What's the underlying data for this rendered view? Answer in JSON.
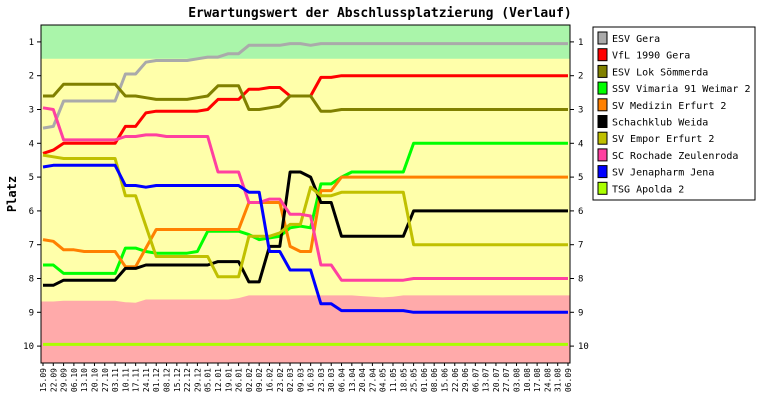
{
  "chart_data": {
    "type": "line",
    "title": "Erwartungswert der Abschlussplatzierung (Verlauf)",
    "ylabel": "Platz",
    "xlabel": "",
    "ylim": [
      0.5,
      10.5
    ],
    "y_inverted": true,
    "y_ticks": [
      "1",
      "2",
      "3",
      "4",
      "5",
      "6",
      "7",
      "8",
      "9",
      "10"
    ],
    "grid": false,
    "legend_position": "right",
    "x": [
      "15.09",
      "22.09",
      "29.09",
      "06.10",
      "13.10",
      "20.10",
      "27.10",
      "03.11",
      "10.11",
      "17.11",
      "24.11",
      "01.12",
      "08.12",
      "15.12",
      "22.12",
      "29.12",
      "05.01",
      "12.01",
      "19.01",
      "26.01",
      "02.02",
      "09.02",
      "16.02",
      "23.02",
      "02.03",
      "09.03",
      "16.03",
      "23.03",
      "30.03",
      "06.04",
      "13.04",
      "20.04",
      "27.04",
      "04.05",
      "11.05",
      "18.05",
      "25.05",
      "01.06",
      "08.06",
      "15.06",
      "22.06",
      "29.06",
      "06.07",
      "13.07",
      "20.07",
      "27.07",
      "03.08",
      "10.08",
      "17.08",
      "24.08",
      "31.08",
      "06.09"
    ],
    "zones": {
      "top": {
        "lower_bound": [
          1.5,
          1.5,
          1.5,
          1.5,
          1.5,
          1.5,
          1.5,
          1.5,
          1.5,
          1.5,
          1.5,
          1.5,
          1.5,
          1.5,
          1.5,
          1.5,
          1.5,
          1.5,
          1.5,
          1.5,
          1.5,
          1.5,
          1.5,
          1.5,
          1.5,
          1.5,
          1.5,
          1.5,
          1.5,
          1.5,
          1.5,
          1.5,
          1.5,
          1.5,
          1.5,
          1.5,
          1.5,
          1.5,
          1.5,
          1.5,
          1.5,
          1.5,
          1.5,
          1.5,
          1.5,
          1.5,
          1.5,
          1.5,
          1.5,
          1.5,
          1.5,
          1.5
        ],
        "color": "#aaf5aa"
      },
      "middle_color": "#ffffaa",
      "bottom": {
        "upper_bound": [
          8.68,
          8.68,
          8.66,
          8.66,
          8.66,
          8.66,
          8.66,
          8.66,
          8.7,
          8.72,
          8.62,
          8.62,
          8.62,
          8.62,
          8.62,
          8.62,
          8.62,
          8.62,
          8.62,
          8.58,
          8.5,
          8.5,
          8.5,
          8.5,
          8.5,
          8.5,
          8.5,
          8.5,
          8.5,
          8.5,
          8.5,
          8.52,
          8.54,
          8.56,
          8.54,
          8.5,
          8.5,
          8.5,
          8.5,
          8.5,
          8.5,
          8.5,
          8.5,
          8.5,
          8.5,
          8.5,
          8.5,
          8.5,
          8.5,
          8.5,
          8.5,
          8.5
        ],
        "color": "#ffaaaa"
      }
    },
    "series": [
      {
        "name": "ESV Gera",
        "color": "#aaaaaa",
        "values": [
          3.55,
          3.5,
          2.75,
          2.75,
          2.75,
          2.75,
          2.75,
          2.75,
          1.95,
          1.95,
          1.6,
          1.55,
          1.55,
          1.55,
          1.55,
          1.5,
          1.45,
          1.45,
          1.35,
          1.35,
          1.1,
          1.1,
          1.1,
          1.1,
          1.05,
          1.05,
          1.1,
          1.05,
          1.05,
          1.05,
          1.05,
          1.05,
          1.05,
          1.05,
          1.05,
          1.05,
          1.05,
          1.05,
          1.05,
          1.05,
          1.05,
          1.05,
          1.05,
          1.05,
          1.05,
          1.05,
          1.05,
          1.05,
          1.05,
          1.05,
          1.05,
          1.05
        ]
      },
      {
        "name": "VfL 1990 Gera",
        "color": "#ff0000",
        "values": [
          4.3,
          4.2,
          4.0,
          4.0,
          4.0,
          4.0,
          4.0,
          4.0,
          3.5,
          3.5,
          3.1,
          3.05,
          3.05,
          3.05,
          3.05,
          3.05,
          3.0,
          2.7,
          2.7,
          2.7,
          2.4,
          2.4,
          2.35,
          2.35,
          2.6,
          2.6,
          2.6,
          2.05,
          2.05,
          2.0,
          2.0,
          2.0,
          2.0,
          2.0,
          2.0,
          2.0,
          2.0,
          2.0,
          2.0,
          2.0,
          2.0,
          2.0,
          2.0,
          2.0,
          2.0,
          2.0,
          2.0,
          2.0,
          2.0,
          2.0,
          2.0,
          2.0
        ]
      },
      {
        "name": "ESV Lok Sömmerda",
        "color": "#808000",
        "values": [
          2.6,
          2.6,
          2.25,
          2.25,
          2.25,
          2.25,
          2.25,
          2.25,
          2.6,
          2.6,
          2.65,
          2.7,
          2.7,
          2.7,
          2.7,
          2.65,
          2.6,
          2.3,
          2.3,
          2.3,
          3.0,
          3.0,
          2.95,
          2.9,
          2.6,
          2.6,
          2.6,
          3.05,
          3.05,
          3.0,
          3.0,
          3.0,
          3.0,
          3.0,
          3.0,
          3.0,
          3.0,
          3.0,
          3.0,
          3.0,
          3.0,
          3.0,
          3.0,
          3.0,
          3.0,
          3.0,
          3.0,
          3.0,
          3.0,
          3.0,
          3.0,
          3.0
        ]
      },
      {
        "name": "SSV Vimaria 91 Weimar 2",
        "color": "#00ff00",
        "values": [
          7.6,
          7.6,
          7.85,
          7.85,
          7.85,
          7.85,
          7.85,
          7.85,
          7.1,
          7.1,
          7.2,
          7.25,
          7.25,
          7.25,
          7.25,
          7.2,
          6.6,
          6.6,
          6.6,
          6.6,
          6.7,
          6.85,
          6.8,
          6.75,
          6.5,
          6.45,
          6.5,
          5.2,
          5.2,
          5.0,
          4.85,
          4.85,
          4.85,
          4.85,
          4.85,
          4.85,
          4.0,
          4.0,
          4.0,
          4.0,
          4.0,
          4.0,
          4.0,
          4.0,
          4.0,
          4.0,
          4.0,
          4.0,
          4.0,
          4.0,
          4.0,
          4.0
        ]
      },
      {
        "name": "SV Medizin Erfurt 2",
        "color": "#ff8000",
        "values": [
          6.85,
          6.9,
          7.15,
          7.15,
          7.2,
          7.2,
          7.2,
          7.2,
          7.65,
          7.65,
          7.1,
          6.55,
          6.55,
          6.55,
          6.55,
          6.55,
          6.55,
          6.55,
          6.55,
          6.55,
          5.75,
          5.75,
          5.75,
          5.75,
          7.05,
          7.2,
          7.2,
          5.4,
          5.4,
          5.0,
          5.0,
          5.0,
          5.0,
          5.0,
          5.0,
          5.0,
          5.0,
          5.0,
          5.0,
          5.0,
          5.0,
          5.0,
          5.0,
          5.0,
          5.0,
          5.0,
          5.0,
          5.0,
          5.0,
          5.0,
          5.0,
          5.0
        ]
      },
      {
        "name": "Schachklub Weida",
        "color": "#000000",
        "values": [
          8.2,
          8.2,
          8.05,
          8.05,
          8.05,
          8.05,
          8.05,
          8.05,
          7.7,
          7.7,
          7.6,
          7.6,
          7.6,
          7.6,
          7.6,
          7.6,
          7.6,
          7.5,
          7.5,
          7.5,
          8.1,
          8.1,
          7.05,
          7.05,
          4.85,
          4.85,
          5.0,
          5.75,
          5.75,
          6.75,
          6.75,
          6.75,
          6.75,
          6.75,
          6.75,
          6.75,
          6.0,
          6.0,
          6.0,
          6.0,
          6.0,
          6.0,
          6.0,
          6.0,
          6.0,
          6.0,
          6.0,
          6.0,
          6.0,
          6.0,
          6.0,
          6.0
        ]
      },
      {
        "name": "SV Empor Erfurt 2",
        "color": "#c0c000",
        "values": [
          4.35,
          4.4,
          4.45,
          4.45,
          4.45,
          4.45,
          4.45,
          4.45,
          5.55,
          5.55,
          6.45,
          7.35,
          7.35,
          7.35,
          7.35,
          7.35,
          7.35,
          7.95,
          7.95,
          7.95,
          6.75,
          6.75,
          6.75,
          6.65,
          6.4,
          6.4,
          5.3,
          5.55,
          5.55,
          5.45,
          5.45,
          5.45,
          5.45,
          5.45,
          5.45,
          5.45,
          7.0,
          7.0,
          7.0,
          7.0,
          7.0,
          7.0,
          7.0,
          7.0,
          7.0,
          7.0,
          7.0,
          7.0,
          7.0,
          7.0,
          7.0,
          7.0
        ]
      },
      {
        "name": "SC Rochade Zeulenroda",
        "color": "#ff40a0",
        "values": [
          2.95,
          3.0,
          3.9,
          3.9,
          3.9,
          3.9,
          3.9,
          3.9,
          3.8,
          3.8,
          3.75,
          3.75,
          3.8,
          3.8,
          3.8,
          3.8,
          3.8,
          4.85,
          4.85,
          4.85,
          5.75,
          5.75,
          5.65,
          5.65,
          6.1,
          6.1,
          6.15,
          7.6,
          7.6,
          8.05,
          8.05,
          8.05,
          8.05,
          8.05,
          8.05,
          8.05,
          8.0,
          8.0,
          8.0,
          8.0,
          8.0,
          8.0,
          8.0,
          8.0,
          8.0,
          8.0,
          8.0,
          8.0,
          8.0,
          8.0,
          8.0,
          8.0
        ]
      },
      {
        "name": "SV Jenapharm Jena",
        "color": "#0000ff",
        "values": [
          4.7,
          4.65,
          4.65,
          4.65,
          4.65,
          4.65,
          4.65,
          4.65,
          5.25,
          5.25,
          5.3,
          5.25,
          5.25,
          5.25,
          5.25,
          5.25,
          5.25,
          5.25,
          5.25,
          5.25,
          5.45,
          5.45,
          7.2,
          7.2,
          7.75,
          7.75,
          7.75,
          8.75,
          8.75,
          8.95,
          8.95,
          8.95,
          8.95,
          8.95,
          8.95,
          8.95,
          9.0,
          9.0,
          9.0,
          9.0,
          9.0,
          9.0,
          9.0,
          9.0,
          9.0,
          9.0,
          9.0,
          9.0,
          9.0,
          9.0,
          9.0,
          9.0
        ]
      },
      {
        "name": "TSG Apolda 2",
        "color": "#aaff00",
        "values": [
          9.95,
          9.95,
          9.95,
          9.95,
          9.95,
          9.95,
          9.95,
          9.95,
          9.95,
          9.95,
          9.95,
          9.95,
          9.95,
          9.95,
          9.95,
          9.95,
          9.95,
          9.95,
          9.95,
          9.95,
          9.95,
          9.95,
          9.95,
          9.95,
          9.95,
          9.95,
          9.95,
          9.95,
          9.95,
          9.95,
          9.95,
          9.95,
          9.95,
          9.95,
          9.95,
          9.95,
          9.95,
          9.95,
          9.95,
          9.95,
          9.95,
          9.95,
          9.95,
          9.95,
          9.95,
          9.95,
          9.95,
          9.95,
          9.95,
          9.95,
          9.95,
          9.95
        ]
      }
    ]
  }
}
